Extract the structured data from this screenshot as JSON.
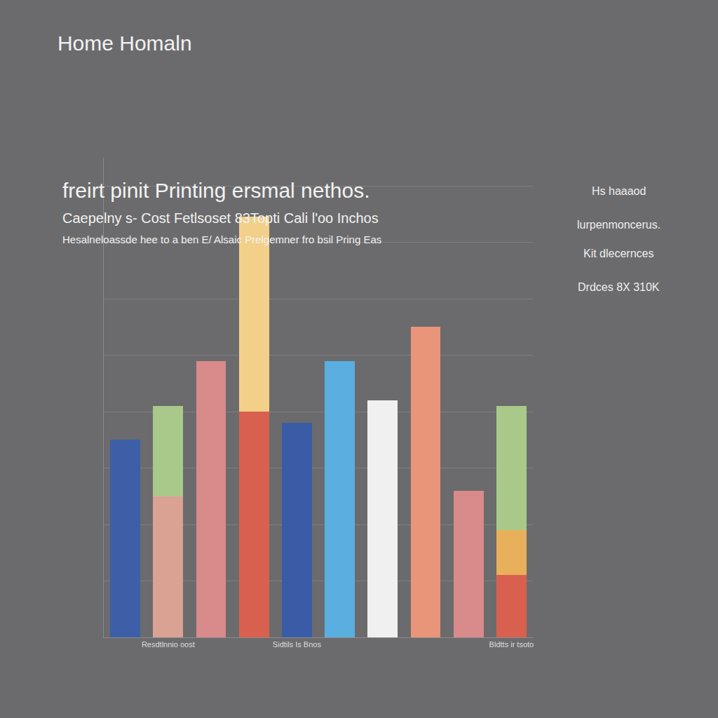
{
  "chart_data": {
    "type": "bar",
    "title": "Home Homaln",
    "subtitle": [
      "freirt pinit Printing ersmal nethos.",
      "Caepelny s- Cost Fetlsoset 83Topti Cali l'oo Inchos",
      "Hesalneloassde hee to a ben E/ Alsaic Prelgemner fro bsil Pring Eas"
    ],
    "annotations": [
      "Hs haaaod",
      "lurpenmoncerus.",
      "Kit dlecernces",
      "Drdces 8X 310K"
    ],
    "categories": [
      null,
      "Resdtlnnio oost",
      null,
      null,
      "Sidtils Is Bnos",
      null,
      null,
      null,
      null,
      "Bldtts ir tsoto"
    ],
    "stacked": true,
    "grid": true,
    "tick_labels": "x",
    "ylim": [
      0,
      8.5
    ],
    "yticks": [
      1,
      2,
      3,
      4,
      5,
      6,
      7,
      8
    ],
    "series": [
      {
        "values": [
          3.5,
          2.5,
          4.9,
          4.0,
          3.8,
          4.9,
          4.2,
          5.5,
          2.6,
          1.1
        ],
        "colors": [
          "#3d5fa8",
          "#d9a293",
          "#d98a8a",
          "#d9604f",
          "#3a5ca6",
          "#5aaee0",
          "#f0f0f0",
          "#e8957a",
          "#d98a8a",
          "#d9604f"
        ]
      },
      {
        "values": [
          null,
          1.6,
          null,
          3.45,
          null,
          null,
          null,
          null,
          null,
          0.8
        ],
        "colors": [
          null,
          "#a9c98a",
          null,
          "#f2d08a",
          null,
          null,
          null,
          null,
          null,
          "#e8b05a"
        ]
      },
      {
        "values": [
          null,
          null,
          null,
          null,
          null,
          null,
          null,
          null,
          null,
          2.2
        ],
        "colors": [
          null,
          null,
          null,
          null,
          null,
          null,
          null,
          null,
          null,
          "#a9c98a"
        ]
      }
    ]
  }
}
